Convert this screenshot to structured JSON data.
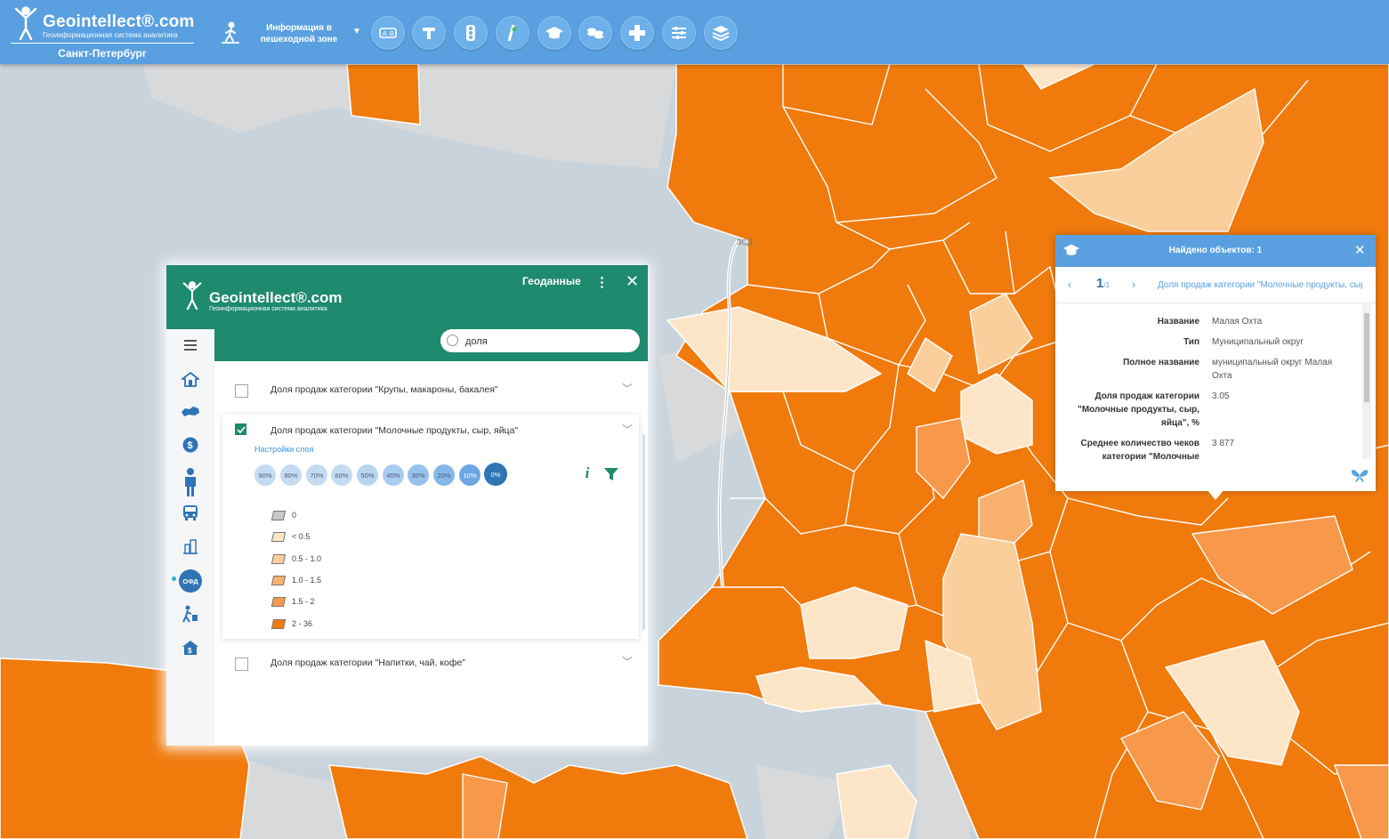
{
  "topbar": {
    "brand": "Geointellect",
    "brand_suffix": "®.com",
    "subtitle": "Геоинформационная система аналитика",
    "city": "Санкт-Петербург",
    "info_zone_label": "Информация в пешеходной зоне",
    "tools": [
      "ab-icon",
      "text-icon",
      "traffic-light-icon",
      "poi-icon",
      "education-icon",
      "money-icon",
      "medical-icon",
      "filters-icon",
      "layers-icon"
    ]
  },
  "map": {
    "road_label": "ЗСД",
    "colors": {
      "water": "#c9d3db",
      "land": "#d7d9db",
      "dark_orange": "#f07a0c",
      "mid_orange": "#f7984a",
      "light_orange": "#fbcf9c",
      "pale": "#fde6c8"
    }
  },
  "panel": {
    "brand": "Geointellect®.com",
    "subtitle": "Геоинформационная система аналитика",
    "title": "Геоданные",
    "search": {
      "value": "доля",
      "placeholder": ""
    },
    "sidebar": [
      "menu-icon",
      "home-icon",
      "russia-map-icon",
      "dollar-icon",
      "person-icon",
      "bus-icon",
      "buildings-icon",
      "ofd-icon",
      "pedestrian-icon",
      "house-money-icon"
    ],
    "ofd_label": "ОФД",
    "layers": [
      {
        "label": "Доля продаж категории \"Крупы, макароны, бакалея\"",
        "checked": false
      },
      {
        "label": "Доля продаж категории \"Молочные продукты, сыр, яйца\"",
        "checked": true
      },
      {
        "label": "Доля продаж категории \"Напитки, чай, кофе\"",
        "checked": false
      }
    ],
    "settings_label": "Настройки слоя",
    "opacity_steps": [
      "90%",
      "80%",
      "70%",
      "60%",
      "50%",
      "40%",
      "30%",
      "20%",
      "10%",
      "0%"
    ],
    "legend": [
      {
        "label": "0",
        "color": "#c9c9c9"
      },
      {
        "label": "< 0.5",
        "color": "#fde6c8"
      },
      {
        "label": "0.5 - 1.0",
        "color": "#fbcf9c"
      },
      {
        "label": "1.0 - 1.5",
        "color": "#f9b170"
      },
      {
        "label": "1.5 - 2",
        "color": "#f7984a"
      },
      {
        "label": "2 - 36",
        "color": "#f07a0c"
      }
    ]
  },
  "popup": {
    "title": "Найдено объектов: 1",
    "page": "1",
    "page_suffix": "/1",
    "layer_name": "Доля продаж категории \"Молочные продукты, сыр, яйца\"",
    "attributes": [
      {
        "key": "Название",
        "value": "Малая Охта"
      },
      {
        "key": "Тип",
        "value": "Муниципальный округ"
      },
      {
        "key": "Полное название",
        "value": "муниципальный округ Малая Охта"
      },
      {
        "key": "Доля продаж категории \"Молочные продукты, сыр, яйца\", %",
        "value": "3.05"
      },
      {
        "key": "Среднее количество чеков категории \"Молочные",
        "value": "3 877"
      }
    ]
  }
}
